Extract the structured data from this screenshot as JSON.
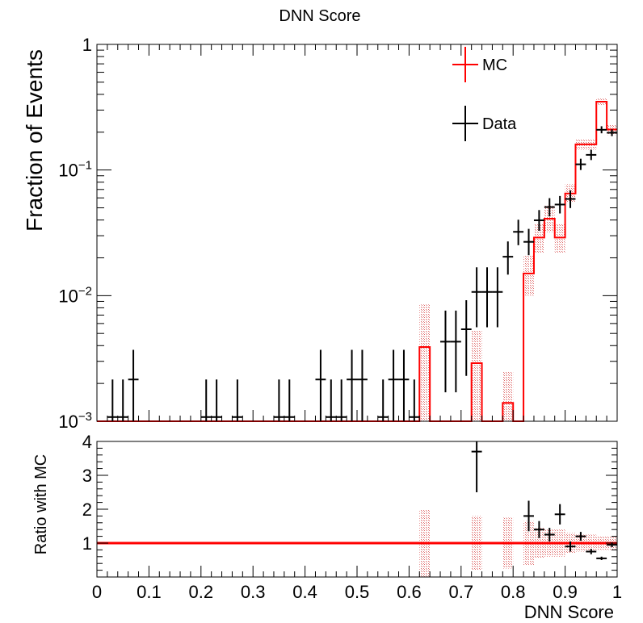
{
  "chart_data": [
    {
      "type": "histogram",
      "title": "DNN Score",
      "ylabel": "Fraction of Events",
      "xlabel": "",
      "y_scale": "log",
      "xlim": [
        0,
        1
      ],
      "ylim": [
        0.001,
        1
      ],
      "grid": false,
      "legend_position": "top-right",
      "y_ticks": [
        {
          "value": 1,
          "base": "1",
          "exp": ""
        },
        {
          "value": 0.1,
          "base": "10",
          "exp": "−1"
        },
        {
          "value": 0.01,
          "base": "10",
          "exp": "−2"
        },
        {
          "value": 0.001,
          "base": "10",
          "exp": "−3"
        }
      ],
      "series": [
        {
          "name": "MC",
          "style": "red step histogram with hatched uncertainty band",
          "color": "#ff0000",
          "bins": [
            {
              "x0": 0.62,
              "x1": 0.64,
              "y": 0.0039,
              "band": [
                0.0008,
                0.0085
              ]
            },
            {
              "x0": 0.72,
              "x1": 0.74,
              "y": 0.0029,
              "band": [
                0.0009,
                0.0053
              ]
            },
            {
              "x0": 0.78,
              "x1": 0.8,
              "y": 0.0014,
              "band": [
                0.0007,
                0.0025
              ]
            },
            {
              "x0": 0.82,
              "x1": 0.84,
              "y": 0.015,
              "band": [
                0.01,
                0.021
              ]
            },
            {
              "x0": 0.84,
              "x1": 0.86,
              "y": 0.029,
              "band": [
                0.022,
                0.037
              ]
            },
            {
              "x0": 0.86,
              "x1": 0.88,
              "y": 0.041,
              "band": [
                0.032,
                0.052
              ]
            },
            {
              "x0": 0.88,
              "x1": 0.9,
              "y": 0.029,
              "band": [
                0.022,
                0.037
              ]
            },
            {
              "x0": 0.9,
              "x1": 0.92,
              "y": 0.065,
              "band": [
                0.055,
                0.077
              ]
            },
            {
              "x0": 0.92,
              "x1": 0.94,
              "y": 0.16,
              "band": [
                0.145,
                0.175
              ]
            },
            {
              "x0": 0.94,
              "x1": 0.96,
              "y": 0.16,
              "band": [
                0.145,
                0.175
              ]
            },
            {
              "x0": 0.96,
              "x1": 0.98,
              "y": 0.35,
              "band": [
                0.33,
                0.37
              ]
            },
            {
              "x0": 0.98,
              "x1": 1.0,
              "y": 0.21,
              "band": [
                0.19,
                0.23
              ]
            }
          ]
        },
        {
          "name": "Data",
          "style": "black points with error bars",
          "color": "#000000",
          "points": [
            {
              "x": 0.03,
              "y": 0.00108,
              "lo": 0.001,
              "hi": 0.00215
            },
            {
              "x": 0.05,
              "y": 0.00108,
              "lo": 0.001,
              "hi": 0.00215
            },
            {
              "x": 0.07,
              "y": 0.00215,
              "lo": 0.001,
              "hi": 0.0037
            },
            {
              "x": 0.21,
              "y": 0.00108,
              "lo": 0.001,
              "hi": 0.00215
            },
            {
              "x": 0.23,
              "y": 0.00108,
              "lo": 0.001,
              "hi": 0.00215
            },
            {
              "x": 0.27,
              "y": 0.00108,
              "lo": 0.001,
              "hi": 0.00215
            },
            {
              "x": 0.35,
              "y": 0.00108,
              "lo": 0.001,
              "hi": 0.00215
            },
            {
              "x": 0.37,
              "y": 0.00108,
              "lo": 0.001,
              "hi": 0.00215
            },
            {
              "x": 0.43,
              "y": 0.00215,
              "lo": 0.001,
              "hi": 0.0037
            },
            {
              "x": 0.45,
              "y": 0.00108,
              "lo": 0.001,
              "hi": 0.00215
            },
            {
              "x": 0.47,
              "y": 0.00108,
              "lo": 0.001,
              "hi": 0.00215
            },
            {
              "x": 0.49,
              "y": 0.00215,
              "lo": 0.001,
              "hi": 0.0037
            },
            {
              "x": 0.51,
              "y": 0.00215,
              "lo": 0.001,
              "hi": 0.0037
            },
            {
              "x": 0.55,
              "y": 0.00108,
              "lo": 0.001,
              "hi": 0.00215
            },
            {
              "x": 0.57,
              "y": 0.00215,
              "lo": 0.001,
              "hi": 0.0037
            },
            {
              "x": 0.59,
              "y": 0.00215,
              "lo": 0.001,
              "hi": 0.0037
            },
            {
              "x": 0.61,
              "y": 0.00108,
              "lo": 0.001,
              "hi": 0.00215
            },
            {
              "x": 0.67,
              "y": 0.0043,
              "lo": 0.0017,
              "hi": 0.0076
            },
            {
              "x": 0.69,
              "y": 0.0043,
              "lo": 0.0017,
              "hi": 0.0076
            },
            {
              "x": 0.71,
              "y": 0.0054,
              "lo": 0.0023,
              "hi": 0.0092
            },
            {
              "x": 0.73,
              "y": 0.0107,
              "lo": 0.0056,
              "hi": 0.0168
            },
            {
              "x": 0.75,
              "y": 0.0107,
              "lo": 0.0056,
              "hi": 0.0168
            },
            {
              "x": 0.77,
              "y": 0.0107,
              "lo": 0.0056,
              "hi": 0.0168
            },
            {
              "x": 0.79,
              "y": 0.0204,
              "lo": 0.0147,
              "hi": 0.027
            },
            {
              "x": 0.81,
              "y": 0.0322,
              "lo": 0.0252,
              "hi": 0.0402
            },
            {
              "x": 0.83,
              "y": 0.0268,
              "lo": 0.021,
              "hi": 0.034
            },
            {
              "x": 0.85,
              "y": 0.0398,
              "lo": 0.0328,
              "hi": 0.048
            },
            {
              "x": 0.87,
              "y": 0.0507,
              "lo": 0.0427,
              "hi": 0.0597
            },
            {
              "x": 0.89,
              "y": 0.0531,
              "lo": 0.0451,
              "hi": 0.0621
            },
            {
              "x": 0.91,
              "y": 0.0588,
              "lo": 0.0498,
              "hi": 0.0688
            },
            {
              "x": 0.93,
              "y": 0.111,
              "lo": 0.1,
              "hi": 0.123
            },
            {
              "x": 0.95,
              "y": 0.132,
              "lo": 0.12,
              "hi": 0.145
            },
            {
              "x": 0.97,
              "y": 0.209,
              "lo": 0.196,
              "hi": 0.223
            },
            {
              "x": 0.99,
              "y": 0.198,
              "lo": 0.186,
              "hi": 0.211
            }
          ]
        }
      ]
    },
    {
      "type": "ratio",
      "xlabel": "DNN Score",
      "ylabel": "Ratio with MC",
      "xlim": [
        0,
        1
      ],
      "ylim": [
        0,
        4
      ],
      "x_ticks": [
        "0",
        "0.1",
        "0.2",
        "0.3",
        "0.4",
        "0.5",
        "0.6",
        "0.7",
        "0.8",
        "0.9",
        "1"
      ],
      "y_ticks": [
        "1",
        "2",
        "3",
        "4"
      ],
      "reference_line": 1,
      "band": [
        {
          "x0": 0.62,
          "x1": 0.64,
          "lo": 0,
          "hi": 2.0
        },
        {
          "x0": 0.72,
          "x1": 0.74,
          "lo": 0.2,
          "hi": 1.8
        },
        {
          "x0": 0.78,
          "x1": 0.8,
          "lo": 0.25,
          "hi": 1.75
        },
        {
          "x0": 0.82,
          "x1": 0.84,
          "lo": 0.35,
          "hi": 1.65
        },
        {
          "x0": 0.84,
          "x1": 0.86,
          "lo": 0.55,
          "hi": 1.45
        },
        {
          "x0": 0.86,
          "x1": 0.88,
          "lo": 0.6,
          "hi": 1.4
        },
        {
          "x0": 0.88,
          "x1": 0.9,
          "lo": 0.6,
          "hi": 1.4
        },
        {
          "x0": 0.9,
          "x1": 0.92,
          "lo": 0.7,
          "hi": 1.3
        },
        {
          "x0": 0.92,
          "x1": 0.94,
          "lo": 0.75,
          "hi": 1.25
        },
        {
          "x0": 0.94,
          "x1": 0.96,
          "lo": 0.75,
          "hi": 1.25
        },
        {
          "x0": 0.96,
          "x1": 0.98,
          "lo": 0.8,
          "hi": 1.2
        },
        {
          "x0": 0.98,
          "x1": 1.0,
          "lo": 0.8,
          "hi": 1.2
        }
      ],
      "points": [
        {
          "x": 0.73,
          "y": 3.7,
          "lo": 2.5,
          "hi": 4.0
        },
        {
          "x": 0.83,
          "y": 1.8,
          "lo": 1.35,
          "hi": 2.25
        },
        {
          "x": 0.85,
          "y": 1.4,
          "lo": 1.15,
          "hi": 1.65
        },
        {
          "x": 0.87,
          "y": 1.25,
          "lo": 1.05,
          "hi": 1.45
        },
        {
          "x": 0.89,
          "y": 1.85,
          "lo": 1.55,
          "hi": 2.15
        },
        {
          "x": 0.91,
          "y": 0.9,
          "lo": 0.75,
          "hi": 1.05
        },
        {
          "x": 0.93,
          "y": 1.2,
          "lo": 1.07,
          "hi": 1.33
        },
        {
          "x": 0.95,
          "y": 0.75,
          "lo": 0.67,
          "hi": 0.83
        },
        {
          "x": 0.97,
          "y": 0.55,
          "lo": 0.5,
          "hi": 0.6
        },
        {
          "x": 0.99,
          "y": 0.95,
          "lo": 0.88,
          "hi": 1.02
        }
      ]
    }
  ]
}
